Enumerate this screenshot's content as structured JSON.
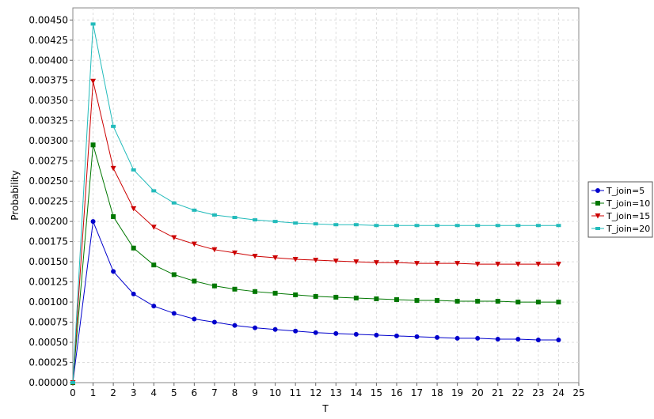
{
  "chart_data": {
    "type": "line",
    "title": "",
    "xlabel": "T",
    "ylabel": "Probability",
    "xlim": [
      0,
      25
    ],
    "ylim": [
      0,
      0.00465
    ],
    "xticks": [
      "0",
      "1",
      "2",
      "3",
      "4",
      "5",
      "6",
      "7",
      "8",
      "9",
      "10",
      "11",
      "12",
      "13",
      "14",
      "15",
      "16",
      "17",
      "18",
      "19",
      "20",
      "21",
      "22",
      "23",
      "24",
      "25"
    ],
    "yticks": [
      "0.00000",
      "0.00025",
      "0.00050",
      "0.00075",
      "0.00100",
      "0.00125",
      "0.00150",
      "0.00175",
      "0.00200",
      "0.00225",
      "0.00250",
      "0.00275",
      "0.00300",
      "0.00325",
      "0.00350",
      "0.00375",
      "0.00400",
      "0.00425",
      "0.00450"
    ],
    "grid": true,
    "legend_position": "right",
    "x": [
      0,
      1,
      2,
      3,
      4,
      5,
      6,
      7,
      8,
      9,
      10,
      11,
      12,
      13,
      14,
      15,
      16,
      17,
      18,
      19,
      20,
      21,
      22,
      23,
      24
    ],
    "series": [
      {
        "name": "T_join=5",
        "color": "#0000cc",
        "marker": "circle",
        "values": [
          0.0,
          0.002,
          0.00138,
          0.0011,
          0.00095,
          0.00086,
          0.00079,
          0.00075,
          0.00071,
          0.00068,
          0.00066,
          0.00064,
          0.00062,
          0.00061,
          0.0006,
          0.00059,
          0.00058,
          0.00057,
          0.00056,
          0.00055,
          0.00055,
          0.00054,
          0.00054,
          0.00053,
          0.00053
        ]
      },
      {
        "name": "T_join=10",
        "color": "#007700",
        "marker": "square",
        "values": [
          0.0,
          0.00295,
          0.00206,
          0.00167,
          0.00146,
          0.00134,
          0.00126,
          0.0012,
          0.00116,
          0.00113,
          0.00111,
          0.00109,
          0.00107,
          0.00106,
          0.00105,
          0.00104,
          0.00103,
          0.00102,
          0.00102,
          0.00101,
          0.00101,
          0.00101,
          0.001,
          0.001,
          0.001
        ]
      },
      {
        "name": "T_join=15",
        "color": "#cc0000",
        "marker": "triangle-down",
        "values": [
          0.0,
          0.00374,
          0.00266,
          0.00216,
          0.00193,
          0.0018,
          0.00172,
          0.00165,
          0.00161,
          0.00157,
          0.00155,
          0.00153,
          0.00152,
          0.00151,
          0.0015,
          0.00149,
          0.00149,
          0.00148,
          0.00148,
          0.00148,
          0.00147,
          0.00147,
          0.00147,
          0.00147,
          0.00147
        ]
      },
      {
        "name": "T_join=20",
        "color": "#22bbbb",
        "marker": "square-small",
        "values": [
          0.0,
          0.00445,
          0.00318,
          0.00264,
          0.00238,
          0.00223,
          0.00214,
          0.00208,
          0.00205,
          0.00202,
          0.002,
          0.00198,
          0.00197,
          0.00196,
          0.00196,
          0.00195,
          0.00195,
          0.00195,
          0.00195,
          0.00195,
          0.00195,
          0.00195,
          0.00195,
          0.00195,
          0.00195
        ]
      }
    ]
  }
}
